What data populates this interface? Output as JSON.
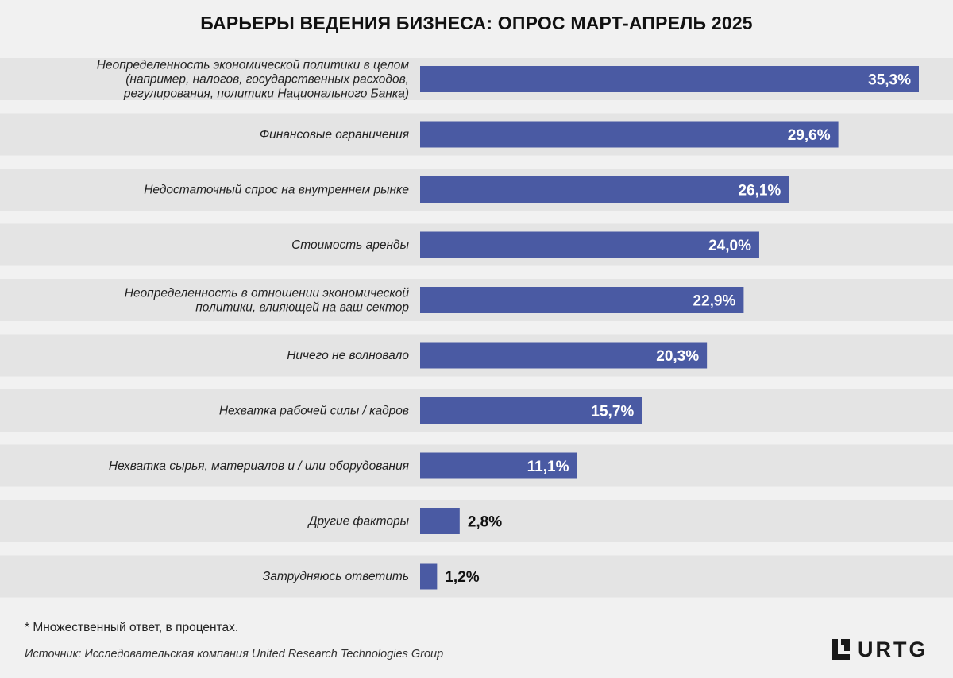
{
  "chart_data": {
    "type": "bar",
    "orientation": "horizontal",
    "title": "БАРЬЕРЫ ВЕДЕНИЯ БИЗНЕСА: ОПРОС МАРТ-АПРЕЛЬ 2025",
    "categories": [
      [
        "Неопределенность экономической политики в целом",
        "(например, налогов, государственных расходов,",
        "регулирования, политики Национального Банка)"
      ],
      [
        "Финансовые ограничения"
      ],
      [
        "Недостаточный спрос на внутреннем рынке"
      ],
      [
        "Стоимость аренды"
      ],
      [
        "Неопределенность в отношении экономической",
        "политики, влияющей на ваш сектор"
      ],
      [
        "Ничего не волновало"
      ],
      [
        "Нехватка рабочей силы / кадров"
      ],
      [
        "Нехватка сырья, материалов и / или оборудования"
      ],
      [
        "Другие факторы"
      ],
      [
        "Затрудняюсь ответить"
      ]
    ],
    "values": [
      35.3,
      29.6,
      26.1,
      24.0,
      22.9,
      20.3,
      15.7,
      11.1,
      2.8,
      1.2
    ],
    "value_labels": [
      "35,3%",
      "29,6%",
      "26,1%",
      "24,0%",
      "22,9%",
      "20,3%",
      "15,7%",
      "11,1%",
      "2,8%",
      "1,2%"
    ],
    "xlim": [
      0,
      35.3
    ],
    "grid": false,
    "legend": "none",
    "colors": {
      "bar": "#4a5aa3",
      "row_band": "#e4e4e4",
      "background": "#f1f1f1",
      "label_inside": "#ffffff",
      "label_outside": "#111111"
    }
  },
  "footnote": "* Множественный ответ, в процентах.",
  "source": "Источник: Исследовательская компания United Research Technologies Group",
  "logo": {
    "text": "URTG",
    "icon": "urtg-logo-icon"
  }
}
